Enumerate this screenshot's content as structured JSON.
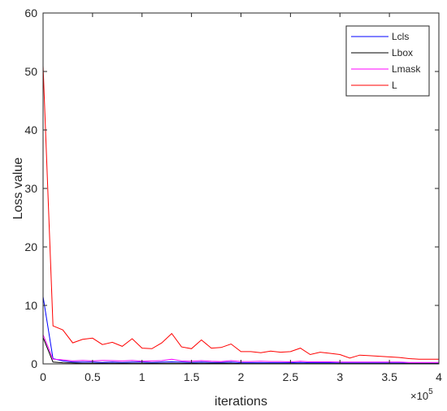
{
  "chart_data": {
    "type": "line",
    "xlabel": "iterations",
    "ylabel": "Loss value",
    "xlim": [
      0,
      400000
    ],
    "ylim": [
      0,
      60
    ],
    "x_ticks": [
      {
        "value": 0,
        "label": "0"
      },
      {
        "value": 50000,
        "label": "0.5"
      },
      {
        "value": 100000,
        "label": "1"
      },
      {
        "value": 150000,
        "label": "1.5"
      },
      {
        "value": 200000,
        "label": "2"
      },
      {
        "value": 250000,
        "label": "2.5"
      },
      {
        "value": 300000,
        "label": "3"
      },
      {
        "value": 350000,
        "label": "3.5"
      },
      {
        "value": 400000,
        "label": "4"
      }
    ],
    "y_ticks": [
      {
        "value": 0,
        "label": "0"
      },
      {
        "value": 10,
        "label": "10"
      },
      {
        "value": 20,
        "label": "20"
      },
      {
        "value": 30,
        "label": "30"
      },
      {
        "value": 40,
        "label": "40"
      },
      {
        "value": 50,
        "label": "50"
      },
      {
        "value": 60,
        "label": "60"
      }
    ],
    "x_exponent_base": "×10",
    "x_exponent_power": "5",
    "grid": false,
    "legend_position": "top-right",
    "x": [
      0,
      10000,
      20000,
      30000,
      40000,
      50000,
      60000,
      70000,
      80000,
      90000,
      100000,
      110000,
      120000,
      130000,
      140000,
      150000,
      160000,
      170000,
      180000,
      190000,
      200000,
      210000,
      220000,
      230000,
      240000,
      250000,
      260000,
      270000,
      280000,
      290000,
      300000,
      310000,
      320000,
      330000,
      340000,
      350000,
      360000,
      370000,
      380000,
      390000,
      400000
    ],
    "series": [
      {
        "name": "Lcls",
        "color": "#0000ff",
        "values": [
          11.5,
          0.9,
          0.5,
          0.3,
          0.3,
          0.3,
          0.25,
          0.3,
          0.25,
          0.3,
          0.3,
          0.25,
          0.3,
          0.35,
          0.3,
          0.25,
          0.3,
          0.25,
          0.25,
          0.3,
          0.2,
          0.2,
          0.2,
          0.2,
          0.2,
          0.2,
          0.25,
          0.2,
          0.2,
          0.2,
          0.15,
          0.15,
          0.15,
          0.15,
          0.15,
          0.15,
          0.15,
          0.1,
          0.1,
          0.1,
          0.1
        ]
      },
      {
        "name": "Lbox",
        "color": "#000000",
        "values": [
          4.5,
          0.3,
          0.2,
          0.15,
          0.1,
          0.1,
          0.1,
          0.1,
          0.1,
          0.1,
          0.1,
          0.1,
          0.1,
          0.1,
          0.1,
          0.1,
          0.1,
          0.1,
          0.1,
          0.1,
          0.05,
          0.05,
          0.05,
          0.05,
          0.05,
          0.05,
          0.05,
          0.05,
          0.05,
          0.05,
          0.05,
          0.05,
          0.05,
          0.05,
          0.05,
          0.05,
          0.05,
          0.05,
          0.05,
          0.05,
          0.05
        ]
      },
      {
        "name": "Lmask",
        "color": "#ff00ff",
        "values": [
          5.0,
          0.8,
          0.7,
          0.5,
          0.6,
          0.5,
          0.6,
          0.55,
          0.5,
          0.6,
          0.45,
          0.5,
          0.55,
          0.8,
          0.5,
          0.45,
          0.55,
          0.45,
          0.4,
          0.55,
          0.4,
          0.4,
          0.45,
          0.4,
          0.4,
          0.35,
          0.45,
          0.35,
          0.35,
          0.35,
          0.3,
          0.3,
          0.3,
          0.3,
          0.3,
          0.3,
          0.3,
          0.25,
          0.25,
          0.25,
          0.25
        ]
      },
      {
        "name": "L",
        "color": "#ff0000",
        "values": [
          51.0,
          6.5,
          5.8,
          3.6,
          4.2,
          4.4,
          3.3,
          3.7,
          3.0,
          4.3,
          2.7,
          2.6,
          3.6,
          5.2,
          2.9,
          2.6,
          4.1,
          2.7,
          2.8,
          3.4,
          2.1,
          2.1,
          1.9,
          2.2,
          2.0,
          2.1,
          2.7,
          1.6,
          2.0,
          1.8,
          1.6,
          1.0,
          1.5,
          1.4,
          1.3,
          1.2,
          1.1,
          0.9,
          0.8,
          0.8,
          0.8
        ]
      }
    ]
  }
}
